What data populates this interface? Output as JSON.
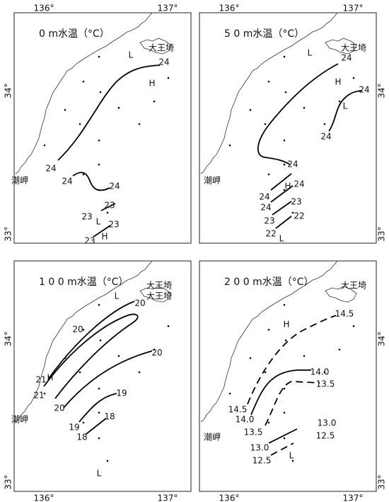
{
  "panels": [
    {
      "title": "0 m水温（°C）",
      "lon_labels": [
        "136°",
        "137°"
      ],
      "lat_labels": [
        "34°",
        "33°"
      ],
      "labels": [
        "大王埼",
        "潮岬",
        "L",
        "H",
        "24",
        "24",
        "24",
        "24",
        "23",
        "L",
        "23",
        "23",
        "H",
        "23"
      ]
    },
    {
      "title": "5 0 m水温（°C）",
      "lon_labels": [
        "136°",
        "137°"
      ],
      "lat_labels": [
        "34°",
        "33°"
      ],
      "labels": [
        "大王埼",
        "潮岬",
        "L",
        "H",
        "L",
        "24",
        "24",
        "24",
        "24",
        "H",
        "24",
        "24",
        "24",
        "23",
        "23",
        "22",
        "22",
        "L"
      ]
    },
    {
      "title": "1 0 0 m水温（°C）",
      "lon_labels": [
        "136°",
        "137°"
      ],
      "lat_labels": [
        "34°",
        "33°"
      ],
      "labels": [
        "大王埼",
        "大王埼",
        "L",
        "20",
        "20",
        "20",
        "21",
        "H",
        "21",
        "20",
        "19",
        "19",
        "18",
        "18",
        "L",
        "潮岬"
      ]
    },
    {
      "title": "2 0 0 m水温（°C）",
      "lon_labels": [
        "136°",
        "137°"
      ],
      "lat_labels": [
        "34°",
        "33°"
      ],
      "labels": [
        "大王埼",
        "潮岬",
        "H",
        "14.5",
        "14.0",
        "13.5",
        "14.5",
        "14.0",
        "13.5",
        "13.0",
        "12.5",
        "13.0",
        "12.5",
        "L"
      ]
    }
  ]
}
